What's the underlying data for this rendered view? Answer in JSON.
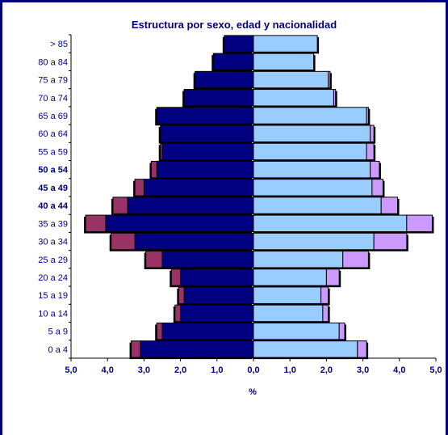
{
  "chart_data": {
    "type": "bar",
    "title": "Estructura por sexo, edad y nacionalidad",
    "xlabel": "%",
    "ylabel": "",
    "xlim": [
      -5,
      5
    ],
    "x_ticks": [
      "5,0",
      "4,0",
      "3,0",
      "2,0",
      "1,0",
      "0,0",
      "1,0",
      "2,0",
      "3,0",
      "4,0",
      "5,0"
    ],
    "grid": false,
    "categories": [
      "0 a 4",
      "5 a 9",
      "10 a 14",
      "15 a 19",
      "20 a 24",
      "25 a 29",
      "30 a 34",
      "35 a 39",
      "40 a 44",
      "45 a 49",
      "50 a 54",
      "55 a 59",
      "60 a 64",
      "65 a 69",
      "70 a 74",
      "75 a 79",
      "80 a 84",
      "> 85"
    ],
    "bold_categories": [
      "40 a 44",
      "45 a 49",
      "50 a 54"
    ],
    "series": [
      {
        "values": [
          3.1,
          2.5,
          2.0,
          1.9,
          2.0,
          2.5,
          3.25,
          4.05,
          3.45,
          3.0,
          2.65,
          2.5,
          2.55,
          2.65,
          1.9,
          1.6,
          1.1,
          0.8
        ],
        "side": "left",
        "color": "#000080"
      },
      {
        "values": [
          0.25,
          0.15,
          0.15,
          0.15,
          0.25,
          0.45,
          0.65,
          0.55,
          0.4,
          0.25,
          0.15,
          0.05,
          0.0,
          0.0,
          0.0,
          0.0,
          0.0,
          0.0
        ],
        "side": "left",
        "color": "#993366"
      },
      {
        "values": [
          2.85,
          2.35,
          1.9,
          1.85,
          2.0,
          2.45,
          3.3,
          4.2,
          3.5,
          3.25,
          3.2,
          3.1,
          3.2,
          3.1,
          2.2,
          2.05,
          1.65,
          1.75
        ],
        "side": "right",
        "color": "#99CCFF"
      },
      {
        "values": [
          0.25,
          0.15,
          0.15,
          0.2,
          0.35,
          0.7,
          0.9,
          0.7,
          0.45,
          0.3,
          0.25,
          0.2,
          0.1,
          0.05,
          0.05,
          0.05,
          0.0,
          0.0
        ],
        "side": "right",
        "color": "#CC99FF"
      }
    ]
  }
}
